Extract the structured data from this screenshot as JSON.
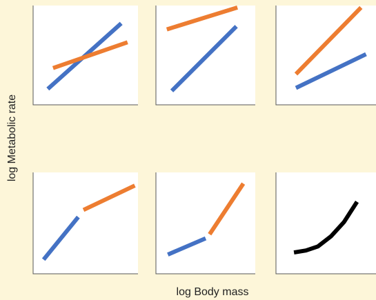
{
  "colors": {
    "background": "#fdf6d9",
    "panel": "#ffffff",
    "axis": "#555555",
    "blue": "#4472c4",
    "orange": "#ed7d31",
    "black": "#000000"
  },
  "chart_data": {
    "type": "line",
    "xlabel": "log Body mass",
    "ylabel": "log Metabolic rate",
    "layout": "2x3 grid of small multiples",
    "axis_ticks": "none",
    "grid": false,
    "legend": "none",
    "panels": [
      {
        "series": [
          {
            "color": "#4472c4",
            "x": [
              0.14,
              0.84
            ],
            "y": [
              0.16,
              0.82
            ]
          },
          {
            "color": "#ed7d31",
            "x": [
              0.19,
              0.9
            ],
            "y": [
              0.37,
              0.63
            ]
          }
        ]
      },
      {
        "series": [
          {
            "color": "#ed7d31",
            "x": [
              0.11,
              0.82
            ],
            "y": [
              0.76,
              0.98
            ]
          },
          {
            "color": "#4472c4",
            "x": [
              0.16,
              0.81
            ],
            "y": [
              0.14,
              0.79
            ]
          }
        ]
      },
      {
        "series": [
          {
            "color": "#ed7d31",
            "x": [
              0.2,
              0.85
            ],
            "y": [
              0.31,
              0.98
            ]
          },
          {
            "color": "#4472c4",
            "x": [
              0.2,
              0.9
            ],
            "y": [
              0.17,
              0.51
            ]
          }
        ]
      },
      {
        "series": [
          {
            "color": "#4472c4",
            "x": [
              0.1,
              0.43
            ],
            "y": [
              0.14,
              0.56
            ]
          },
          {
            "color": "#ed7d31",
            "x": [
              0.48,
              0.97
            ],
            "y": [
              0.63,
              0.87
            ]
          }
        ]
      },
      {
        "series": [
          {
            "color": "#4472c4",
            "x": [
              0.12,
              0.5
            ],
            "y": [
              0.19,
              0.35
            ]
          },
          {
            "color": "#ed7d31",
            "x": [
              0.54,
              0.88
            ],
            "y": [
              0.39,
              0.89
            ]
          }
        ]
      },
      {
        "series": [
          {
            "color": "#000000",
            "x": [
              0.18,
              0.3,
              0.42,
              0.55,
              0.68,
              0.81
            ],
            "y": [
              0.21,
              0.23,
              0.27,
              0.37,
              0.51,
              0.71
            ]
          }
        ]
      }
    ]
  }
}
